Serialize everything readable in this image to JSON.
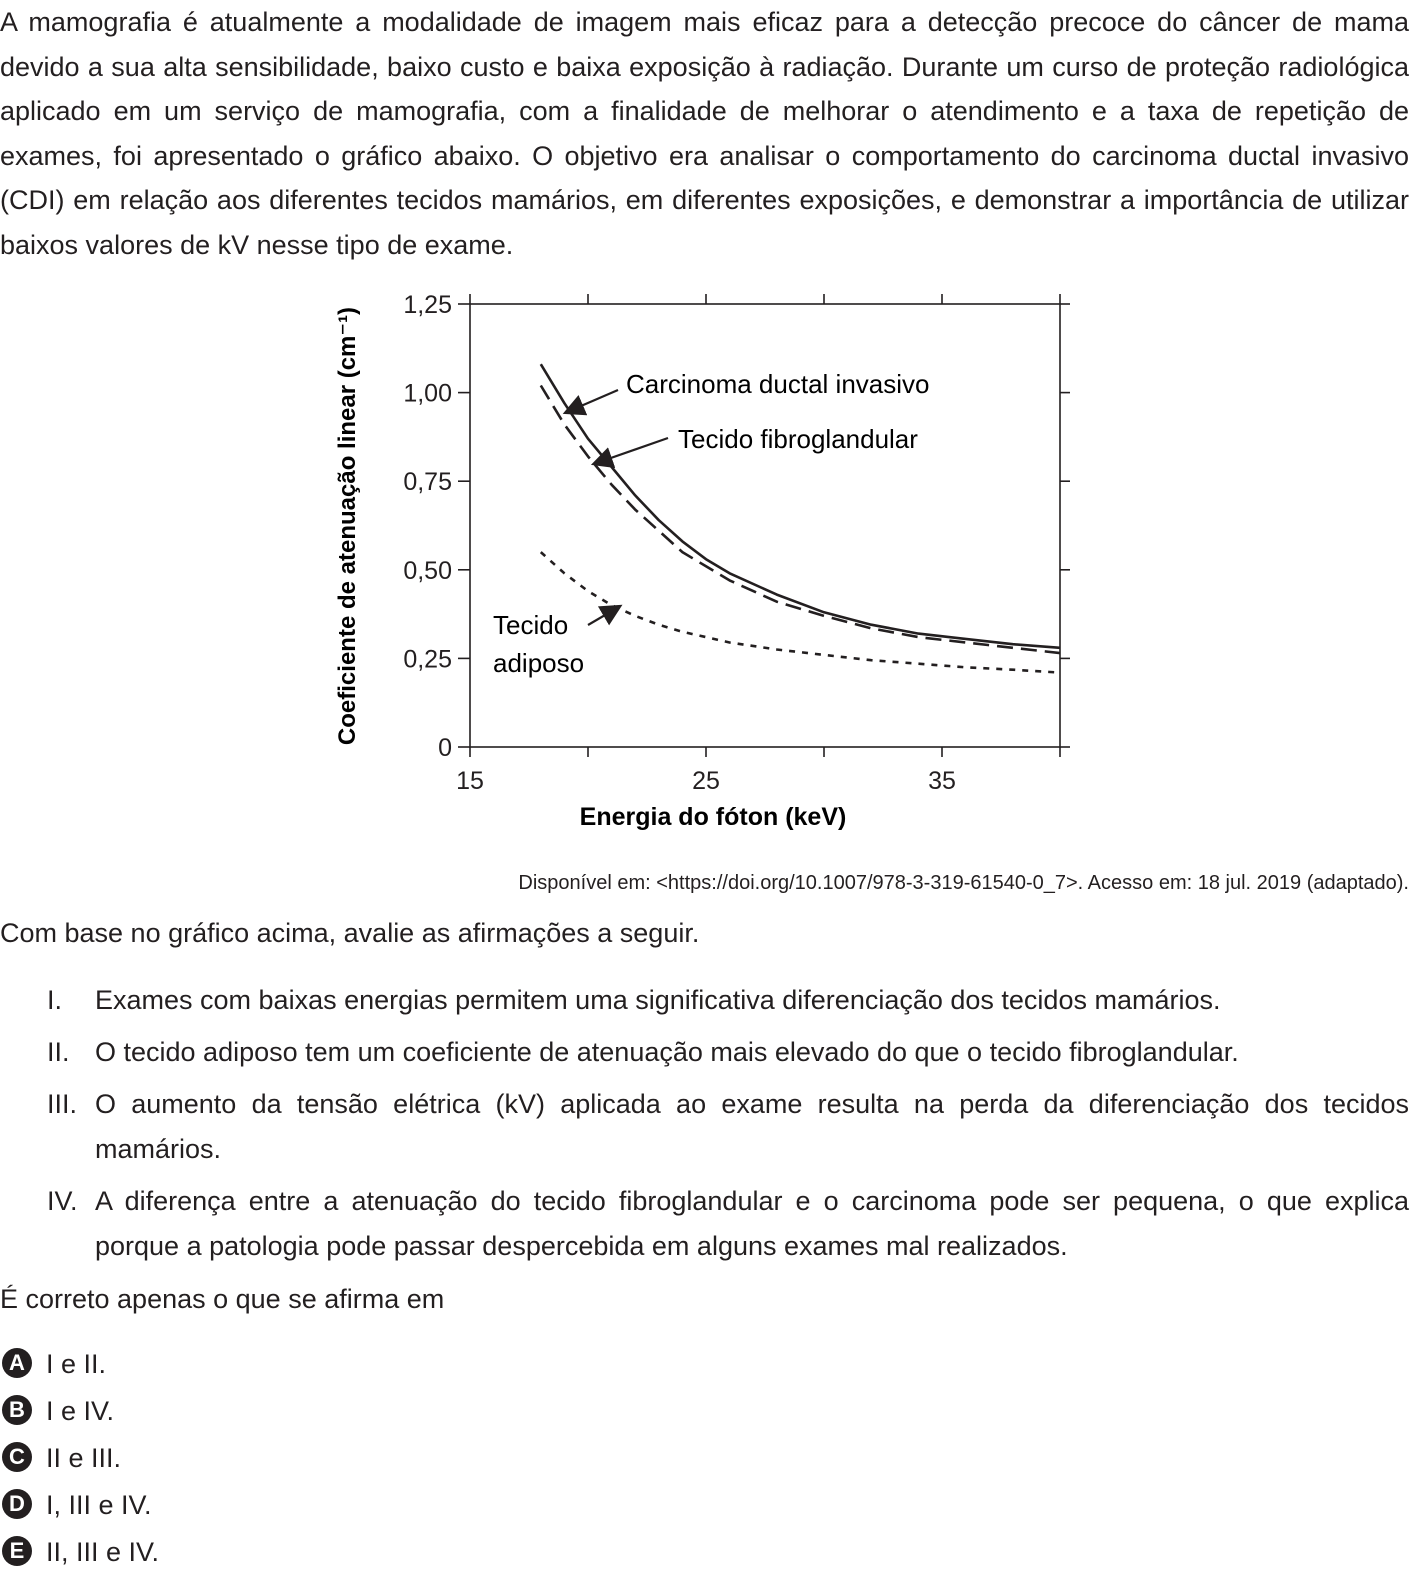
{
  "intro": "A mamografia é atualmente a modalidade de imagem mais eficaz para a detecção precoce do câncer de mama devido a sua alta sensibilidade, baixo custo e baixa exposição à radiação. Durante um curso de proteção radiológica aplicado em um serviço de mamografia, com a finalidade de melhorar o atendimento e a taxa de repetição de exames, foi apresentado o gráfico abaixo. O objetivo era analisar o comportamento do carcinoma ductal invasivo (CDI) em relação aos diferentes tecidos mamários, em diferentes exposições, e demonstrar a importância de utilizar baixos valores de kV nesse tipo de exame.",
  "chart_data": {
    "type": "line",
    "xlabel": "Energia do fóton (keV)",
    "ylabel": "Coeficiente de atenuação linear (cm⁻¹)",
    "xlim": [
      15,
      40
    ],
    "ylim": [
      0,
      1.25
    ],
    "x_ticks": [
      "15",
      "25",
      "35"
    ],
    "y_ticks": [
      "0",
      "0,25",
      "0,50",
      "0,75",
      "1,00",
      "1,25"
    ],
    "grid": false,
    "series": [
      {
        "name": "Carcinoma ductal invasivo",
        "style": "solid",
        "x": [
          18,
          19,
          20,
          21,
          22,
          23,
          24,
          25,
          26,
          28,
          30,
          32,
          34,
          36,
          38,
          40
        ],
        "y": [
          1.08,
          0.97,
          0.87,
          0.79,
          0.71,
          0.64,
          0.58,
          0.53,
          0.49,
          0.43,
          0.38,
          0.345,
          0.32,
          0.305,
          0.29,
          0.28
        ]
      },
      {
        "name": "Tecido fibroglandular",
        "style": "dashed",
        "x": [
          18,
          19,
          20,
          21,
          22,
          23,
          24,
          25,
          26,
          28,
          30,
          32,
          34,
          36,
          38,
          40
        ],
        "y": [
          1.02,
          0.91,
          0.82,
          0.74,
          0.67,
          0.61,
          0.55,
          0.51,
          0.47,
          0.41,
          0.37,
          0.335,
          0.31,
          0.295,
          0.28,
          0.265
        ]
      },
      {
        "name": "Tecido adiposo",
        "style": "dotted",
        "x": [
          18,
          19,
          20,
          21,
          22,
          23,
          24,
          25,
          26,
          28,
          30,
          32,
          34,
          36,
          38,
          40
        ],
        "y": [
          0.55,
          0.49,
          0.44,
          0.4,
          0.37,
          0.345,
          0.325,
          0.31,
          0.295,
          0.275,
          0.26,
          0.245,
          0.235,
          0.225,
          0.218,
          0.21
        ]
      }
    ],
    "annotations": {
      "cdi": "Carcinoma ductal invasivo",
      "fibro": "Tecido fibroglandular",
      "adiposo_line1": "Tecido",
      "adiposo_line2": "adiposo"
    }
  },
  "source": "Disponível em: <https://doi.org/10.1007/978-3-319-61540-0_7>. Acesso em: 18 jul. 2019 (adaptado).",
  "lead": "Com base no gráfico acima, avalie as afirmações a seguir.",
  "statements": [
    {
      "num": "I.",
      "text": "Exames com baixas energias permitem uma significativa diferenciação dos tecidos mamários."
    },
    {
      "num": "II.",
      "text": "O tecido adiposo tem um coeficiente de atenuação mais elevado do que o tecido fibroglandular."
    },
    {
      "num": "III.",
      "text": "O aumento da tensão elétrica (kV) aplicada ao exame resulta na perda da diferenciação dos tecidos mamários."
    },
    {
      "num": "IV.",
      "text": "A diferença entre a atenuação do tecido fibroglandular e o carcinoma pode ser pequena, o que explica porque a patologia pode passar despercebida em alguns exames mal realizados."
    }
  ],
  "question": "É correto apenas o que se afirma em",
  "options": [
    {
      "letter": "A",
      "text": "I e II."
    },
    {
      "letter": "B",
      "text": "I e IV."
    },
    {
      "letter": "C",
      "text": "II e III."
    },
    {
      "letter": "D",
      "text": "I, III e IV."
    },
    {
      "letter": "E",
      "text": "II, III e IV."
    }
  ]
}
